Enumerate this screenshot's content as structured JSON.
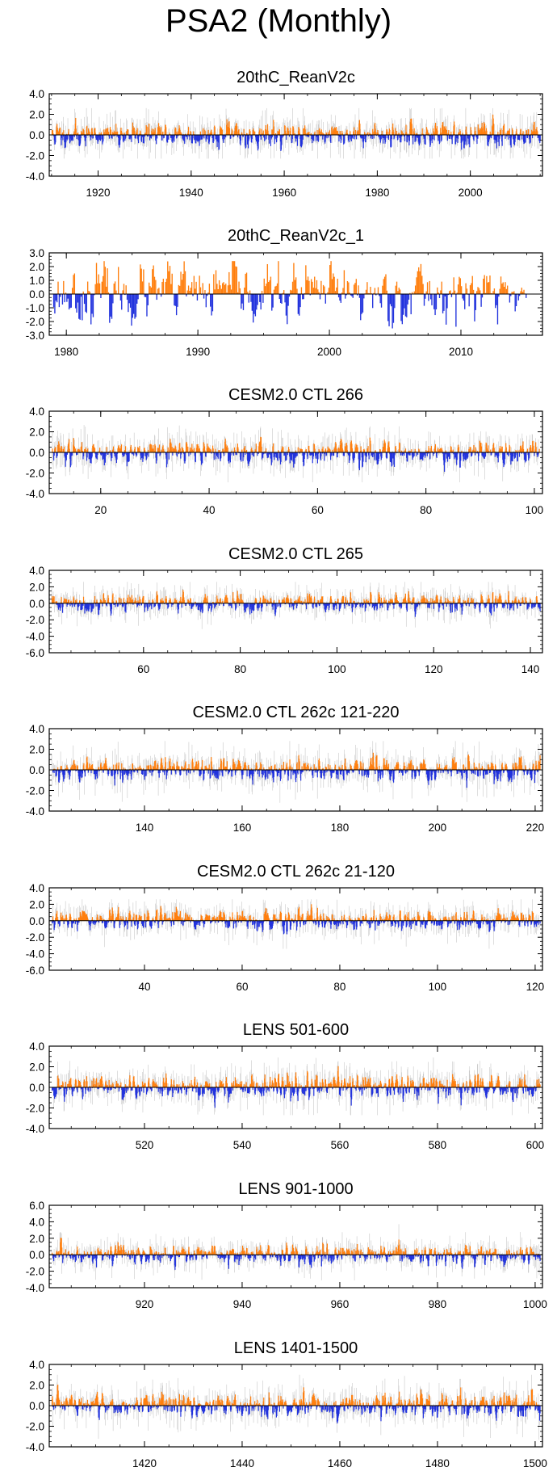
{
  "figure_title": "PSA2 (Monthly)",
  "colors": {
    "positive": "#ff7f0e",
    "negative": "#2233dd",
    "raw": "#c8c8c8",
    "axis": "#000000"
  },
  "chart_data": [
    {
      "type": "bar",
      "title": "20thC_ReanV2c",
      "ylim": [
        -4,
        4
      ],
      "yticks": [
        "4.0",
        "2.0",
        "0.0",
        "-2.0",
        "-4.0"
      ],
      "xlim": [
        1909.5,
        2015.5
      ],
      "xticks": [
        1920,
        1940,
        1960,
        1980,
        2000
      ],
      "start": 1910,
      "end": 2014.9,
      "max_pos": 2.6,
      "max_neg": 2.3,
      "seed": 11
    },
    {
      "type": "bar",
      "title": "20thC_ReanV2c_1",
      "ylim": [
        -3,
        3
      ],
      "yticks": [
        "3.0",
        "2.0",
        "1.0",
        "0.0",
        "-1.0",
        "-2.0",
        "-3.0"
      ],
      "xlim": [
        1978.7,
        2016.2
      ],
      "xticks": [
        1980,
        1990,
        2000,
        2010
      ],
      "start": 1979,
      "end": 2014.9,
      "max_pos": 2.4,
      "max_neg": 2.5,
      "seed": 23,
      "smooth": true
    },
    {
      "type": "bar",
      "title": "CESM2.0 CTL 266",
      "ylim": [
        -4,
        4
      ],
      "yticks": [
        "4.0",
        "2.0",
        "0.0",
        "-2.0",
        "-4.0"
      ],
      "xlim": [
        10.5,
        101.5
      ],
      "xticks": [
        20,
        40,
        60,
        80,
        100
      ],
      "start": 11,
      "end": 100.9,
      "max_pos": 2.8,
      "max_neg": 2.9,
      "seed": 37
    },
    {
      "type": "bar",
      "title": "CESM2.0 CTL 265",
      "ylim": [
        -6,
        4
      ],
      "yticks": [
        "4.0",
        "2.0",
        "0.0",
        "-2.0",
        "-4.0",
        "-6.0"
      ],
      "xlim": [
        40.5,
        142.5
      ],
      "xticks": [
        60,
        80,
        100,
        120,
        140
      ],
      "start": 41,
      "end": 141.9,
      "max_pos": 2.6,
      "max_neg": 3.9,
      "seed": 41
    },
    {
      "type": "bar",
      "title": "CESM2.0 CTL 262c 121-220",
      "ylim": [
        -4,
        4
      ],
      "yticks": [
        "4.0",
        "2.0",
        "0.0",
        "-2.0",
        "-4.0"
      ],
      "xlim": [
        120.5,
        221.5
      ],
      "xticks": [
        140,
        160,
        180,
        200,
        220
      ],
      "start": 121,
      "end": 220.9,
      "max_pos": 2.8,
      "max_neg": 3.2,
      "seed": 53
    },
    {
      "type": "bar",
      "title": "CESM2.0 CTL 262c 21-120",
      "ylim": [
        -6,
        4
      ],
      "yticks": [
        "4.0",
        "2.0",
        "0.0",
        "-2.0",
        "-4.0",
        "-6.0"
      ],
      "xlim": [
        20.5,
        121.5
      ],
      "xticks": [
        40,
        60,
        80,
        100,
        120
      ],
      "start": 21,
      "end": 120.9,
      "max_pos": 2.6,
      "max_neg": 3.4,
      "seed": 67
    },
    {
      "type": "bar",
      "title": "LENS 501-600",
      "ylim": [
        -4,
        4
      ],
      "yticks": [
        "4.0",
        "2.0",
        "0.0",
        "-2.0",
        "-4.0"
      ],
      "xlim": [
        500.5,
        601.5
      ],
      "xticks": [
        520,
        540,
        560,
        580,
        600
      ],
      "start": 501,
      "end": 600.9,
      "max_pos": 2.9,
      "max_neg": 2.7,
      "seed": 71
    },
    {
      "type": "bar",
      "title": "LENS 901-1000",
      "ylim": [
        -4,
        6
      ],
      "yticks": [
        "6.0",
        "4.0",
        "2.0",
        "0.0",
        "-2.0",
        "-4.0"
      ],
      "xlim": [
        900.5,
        1001.5
      ],
      "xticks": [
        920,
        940,
        960,
        980,
        1000
      ],
      "start": 901,
      "end": 1000.9,
      "max_pos": 3.8,
      "max_neg": 3.1,
      "seed": 83
    },
    {
      "type": "bar",
      "title": "LENS 1401-1500",
      "ylim": [
        -4,
        4
      ],
      "yticks": [
        "4.0",
        "2.0",
        "0.0",
        "-2.0",
        "-4.0"
      ],
      "xlim": [
        1400.5,
        1501.5
      ],
      "xticks": [
        1420,
        1440,
        1460,
        1480,
        1500
      ],
      "start": 1401,
      "end": 1500.9,
      "max_pos": 3.0,
      "max_neg": 3.3,
      "seed": 97
    }
  ]
}
